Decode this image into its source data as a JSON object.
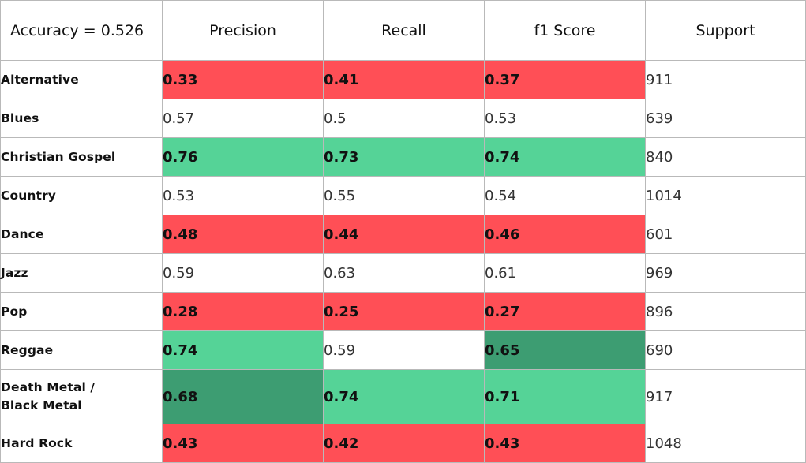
{
  "chart_data": {
    "type": "table",
    "title": "Accuracy = 0.526",
    "columns": [
      "Precision",
      "Recall",
      "f1 Score",
      "Support"
    ],
    "colors": {
      "red": "#ff4f56",
      "green": "#55d397",
      "dark": "#3d9d72",
      "none": "#ffffff"
    },
    "rows": [
      {
        "label": "Alternative",
        "values": [
          0.33,
          0.41,
          0.37
        ],
        "display": [
          "0.33",
          "0.41",
          "0.37"
        ],
        "highlight": [
          "red",
          "red",
          "red"
        ],
        "support": "911"
      },
      {
        "label": "Blues",
        "values": [
          0.57,
          0.5,
          0.53
        ],
        "display": [
          "0.57",
          "0.5",
          "0.53"
        ],
        "highlight": [
          "none",
          "none",
          "none"
        ],
        "support": "639"
      },
      {
        "label": "Christian Gospel",
        "values": [
          0.76,
          0.73,
          0.74
        ],
        "display": [
          "0.76",
          "0.73",
          "0.74"
        ],
        "highlight": [
          "green",
          "green",
          "green"
        ],
        "support": "840"
      },
      {
        "label": "Country",
        "values": [
          0.53,
          0.55,
          0.54
        ],
        "display": [
          "0.53",
          "0.55",
          "0.54"
        ],
        "highlight": [
          "none",
          "none",
          "none"
        ],
        "support": "1014"
      },
      {
        "label": "Dance",
        "values": [
          0.48,
          0.44,
          0.46
        ],
        "display": [
          "0.48",
          "0.44",
          "0.46"
        ],
        "highlight": [
          "red",
          "red",
          "red"
        ],
        "support": "601"
      },
      {
        "label": "Jazz",
        "values": [
          0.59,
          0.63,
          0.61
        ],
        "display": [
          "0.59",
          "0.63",
          "0.61"
        ],
        "highlight": [
          "none",
          "none",
          "none"
        ],
        "support": "969"
      },
      {
        "label": "Pop",
        "values": [
          0.28,
          0.25,
          0.27
        ],
        "display": [
          "0.28",
          "0.25",
          "0.27"
        ],
        "highlight": [
          "red",
          "red",
          "red"
        ],
        "support": "896"
      },
      {
        "label": "Reggae",
        "values": [
          0.74,
          0.59,
          0.65
        ],
        "display": [
          "0.74",
          "0.59",
          "0.65"
        ],
        "highlight": [
          "green",
          "none",
          "dark"
        ],
        "support": "690"
      },
      {
        "label": "Death Metal /\nBlack Metal",
        "values": [
          0.68,
          0.74,
          0.71
        ],
        "display": [
          "0.68",
          "0.74",
          "0.71"
        ],
        "highlight": [
          "dark",
          "green",
          "green"
        ],
        "support": "917"
      },
      {
        "label": "Hard Rock",
        "values": [
          0.43,
          0.42,
          0.43
        ],
        "display": [
          "0.43",
          "0.42",
          "0.43"
        ],
        "highlight": [
          "red",
          "red",
          "red"
        ],
        "support": "1048"
      }
    ]
  }
}
